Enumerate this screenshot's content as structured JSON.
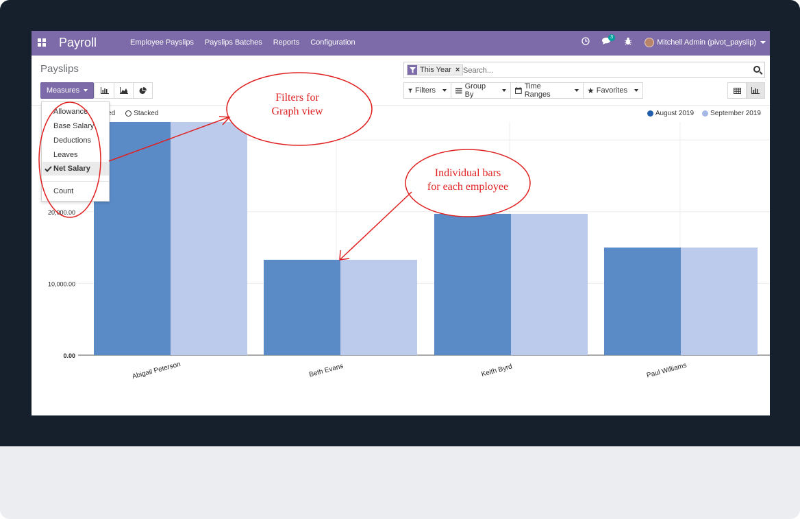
{
  "navbar": {
    "brand": "Payroll",
    "menu": [
      "Employee Payslips",
      "Payslips Batches",
      "Reports",
      "Configuration"
    ],
    "chat_count": "3",
    "user": "Mitchell Admin (pivot_payslip)"
  },
  "control_panel": {
    "title": "Payslips",
    "measures_label": "Measures",
    "search_facet": "This Year",
    "search_placeholder": "Search...",
    "filters_label": "Filters",
    "group_by_label": "Group By",
    "time_ranges_label": "Time Ranges",
    "favorites_label": "Favorites"
  },
  "measures_menu": {
    "items": [
      "Allowance",
      "Base Salary",
      "Deductions",
      "Leaves",
      "Net Salary"
    ],
    "selected": "Net Salary",
    "extra": "Count"
  },
  "graph_options": {
    "grouped_label": "uped",
    "stacked_label": "Stacked"
  },
  "annotations": {
    "filters_note_line1": "Filters  for",
    "filters_note_line2": "Graph  view",
    "bars_note_line1": "Individual  bars",
    "bars_note_line2": "for  each  employee",
    "color": "#e02020"
  },
  "colors": {
    "navbar": "#7c6ba8",
    "series_1": "#5b8bc7",
    "series_2": "#bccbec",
    "legend_1": "#1f5fad",
    "legend_2": "#a5b8e6"
  },
  "chart_data": {
    "type": "bar",
    "categories": [
      "Abigail Peterson",
      "Beth Evans",
      "Keith Byrd",
      "Paul Williams"
    ],
    "series": [
      {
        "name": "August 2019",
        "values": [
          32500,
          13300,
          19700,
          15000
        ]
      },
      {
        "name": "September 2019",
        "values": [
          32500,
          13300,
          19700,
          15000
        ]
      }
    ],
    "ylim": [
      0,
      32500
    ],
    "y_ticks": [
      {
        "value": 0,
        "label": "0.00"
      },
      {
        "value": 10000,
        "label": "10,000.00"
      },
      {
        "value": 20000,
        "label": "20,000.00"
      },
      {
        "value": 30000,
        "label": ""
      }
    ],
    "legend_position": "top-right",
    "grid": true
  }
}
